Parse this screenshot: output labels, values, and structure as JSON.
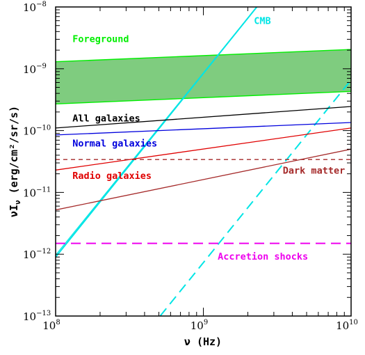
{
  "chart_data": {
    "type": "line",
    "xlabel": "ν (Hz)",
    "ylabel": "νI",
    "ylabel_sub": "ν",
    "ylabel_units": " (erg/cm²/sr/s)",
    "xscale": "log",
    "yscale": "log",
    "xlim": [
      100000000.0,
      10000000000.0
    ],
    "ylim": [
      1e-13,
      1e-08
    ],
    "x_ticks": [
      {
        "value": 100000000.0,
        "base": "10",
        "exp": "8"
      },
      {
        "value": 1000000000.0,
        "base": "10",
        "exp": "9"
      },
      {
        "value": 10000000000.0,
        "base": "10",
        "exp": "10"
      }
    ],
    "y_ticks": [
      {
        "value": 1e-13,
        "base": "10",
        "exp": "−13"
      },
      {
        "value": 1e-12,
        "base": "10",
        "exp": "−12"
      },
      {
        "value": 1e-11,
        "base": "10",
        "exp": "−11"
      },
      {
        "value": 1e-10,
        "base": "10",
        "exp": "−10"
      },
      {
        "value": 1e-09,
        "base": "10",
        "exp": "−9"
      },
      {
        "value": 1e-08,
        "base": "10",
        "exp": "−8"
      }
    ],
    "band": {
      "name": "Foreground",
      "color": "#00ee00",
      "fill": "#7fcc7f",
      "upper": [
        {
          "x": 100000000.0,
          "y": 1.3e-09
        },
        {
          "x": 10000000000.0,
          "y": 2.05e-09
        }
      ],
      "lower": [
        {
          "x": 100000000.0,
          "y": 2.7e-10
        },
        {
          "x": 10000000000.0,
          "y": 4.3e-10
        }
      ]
    },
    "series": [
      {
        "name": "CMB",
        "color": "#00e5e5",
        "dash": "",
        "width": 2,
        "points": [
          {
            "x": 100000000.0,
            "y": 9e-13
          },
          {
            "x": 2300000000.0,
            "y": 1e-08
          }
        ]
      },
      {
        "name": "",
        "color": "#00e5e5",
        "dash": "",
        "width": 1.2,
        "points": [
          {
            "x": 100000000.0,
            "y": 9.7e-13
          },
          {
            "x": 2300000000.0,
            "y": 1e-08
          }
        ]
      },
      {
        "name": "",
        "color": "#00e5e5",
        "dash": "14,8",
        "width": 2,
        "points": [
          {
            "x": 510000000.0,
            "y": 1e-13
          },
          {
            "x": 10000000000.0,
            "y": 6.6e-10
          }
        ]
      },
      {
        "name": "All galaxies",
        "color": "#000000",
        "dash": "",
        "width": 1.3,
        "points": [
          {
            "x": 100000000.0,
            "y": 1.1e-10
          },
          {
            "x": 10000000000.0,
            "y": 2.45e-10
          }
        ]
      },
      {
        "name": "Normal galaxies",
        "color": "#0000dd",
        "dash": "",
        "width": 1.3,
        "points": [
          {
            "x": 100000000.0,
            "y": 8.5e-11
          },
          {
            "x": 10000000000.0,
            "y": 1.35e-10
          }
        ]
      },
      {
        "name": "Radio galaxies",
        "color": "#e00000",
        "dash": "",
        "width": 1.3,
        "points": [
          {
            "x": 100000000.0,
            "y": 2.3e-11
          },
          {
            "x": 10000000000.0,
            "y": 1.1e-10
          }
        ]
      },
      {
        "name": "",
        "color": "#a52a2a",
        "dash": "",
        "width": 1.3,
        "points": [
          {
            "x": 100000000.0,
            "y": 5.2e-12
          },
          {
            "x": 10000000000.0,
            "y": 5e-11
          }
        ]
      },
      {
        "name": "Dark matter",
        "color": "#a52a2a",
        "dash": "6,5",
        "width": 1.3,
        "points": [
          {
            "x": 100000000.0,
            "y": 3.4e-11
          },
          {
            "x": 10000000000.0,
            "y": 3.4e-11
          }
        ]
      },
      {
        "name": "Accretion shocks",
        "color": "#ee00ee",
        "dash": "14,8",
        "width": 2,
        "points": [
          {
            "x": 100000000.0,
            "y": 1.5e-12
          },
          {
            "x": 10000000000.0,
            "y": 1.5e-12
          }
        ]
      }
    ],
    "annotations": [
      {
        "text": "Foreground",
        "color": "#00ee00",
        "at_x": 130000000.0,
        "at_y": 2.7e-09
      },
      {
        "text": "CMB",
        "color": "#00e5e5",
        "at_x": 2200000000.0,
        "at_y": 5.3e-09
      },
      {
        "text": "All galaxies",
        "color": "#000000",
        "at_x": 130000000.0,
        "at_y": 1.4e-10
      },
      {
        "text": "Normal galaxies",
        "color": "#0000dd",
        "at_x": 130000000.0,
        "at_y": 5.5e-11
      },
      {
        "text": "Radio galaxies",
        "color": "#e00000",
        "at_x": 130000000.0,
        "at_y": 1.65e-11
      },
      {
        "text": "Dark matter",
        "color": "#a52a2a",
        "at_x": 3450000000.0,
        "at_y": 2e-11
      },
      {
        "text": "Accretion shocks",
        "color": "#ee00ee",
        "at_x": 1250000000.0,
        "at_y": 8.2e-13
      }
    ],
    "grid": false,
    "legend": "none"
  }
}
